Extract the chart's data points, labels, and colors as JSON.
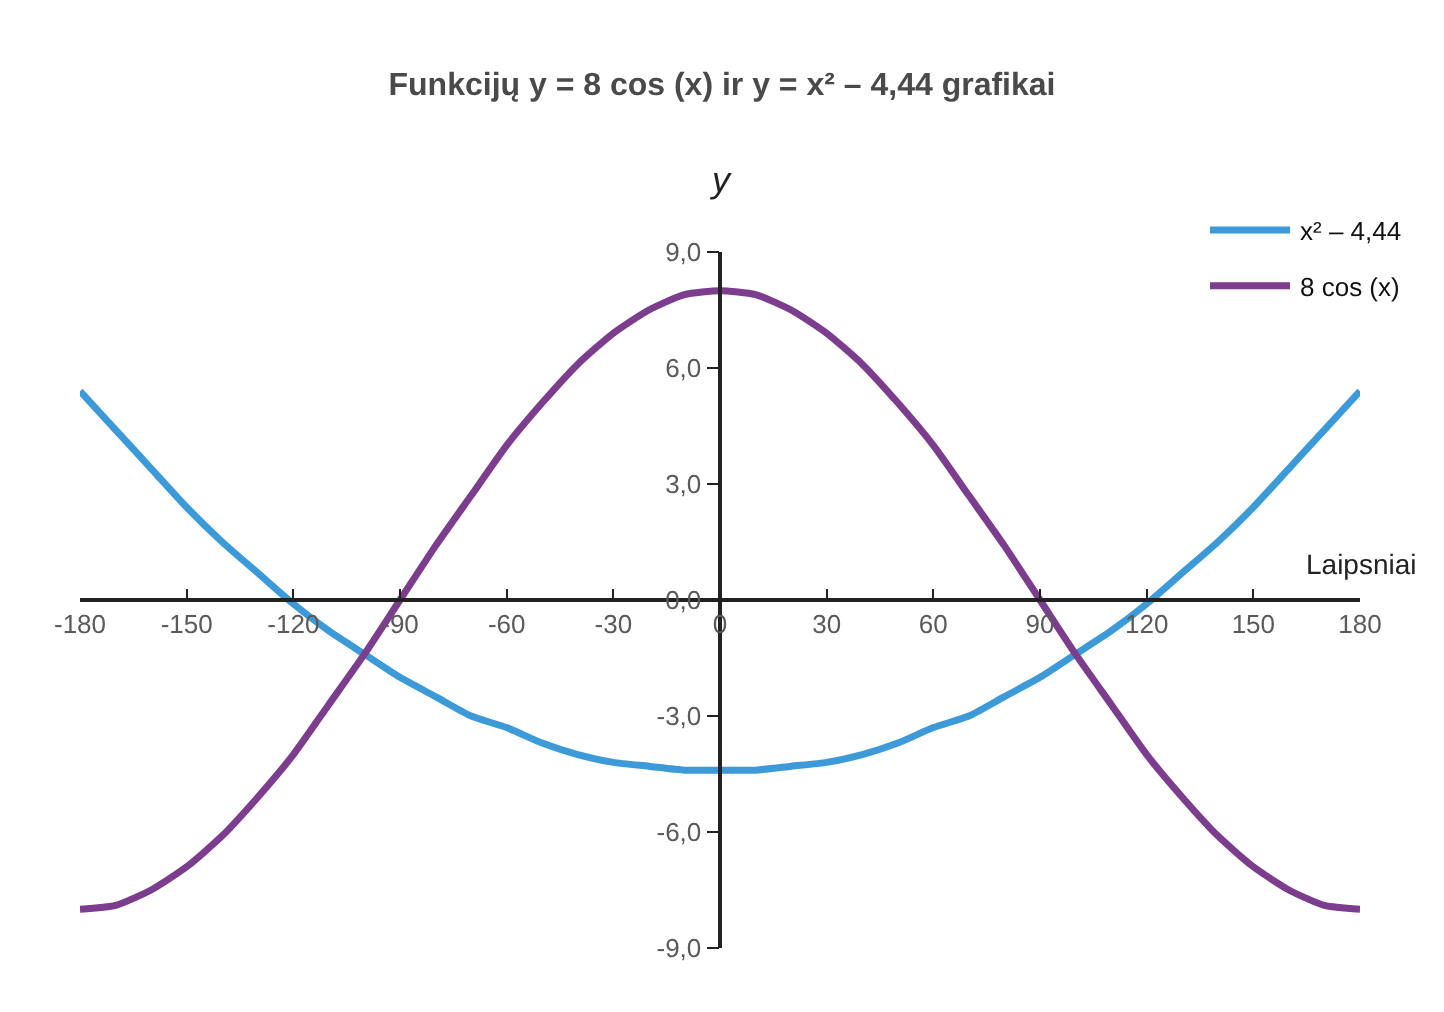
{
  "chart_data": {
    "type": "line",
    "title": "Funkcijų y = 8 cos (x) ir y = x² – 4,44 grafikai",
    "xlabel": "Laipsniai",
    "ylabel": "y",
    "x": [
      -180,
      -170,
      -160,
      -150,
      -140,
      -130,
      -120,
      -110,
      -100,
      -90,
      -80,
      -70,
      -60,
      -50,
      -40,
      -30,
      -20,
      -10,
      0,
      10,
      20,
      30,
      40,
      50,
      60,
      70,
      80,
      90,
      100,
      110,
      120,
      130,
      140,
      150,
      160,
      170,
      180
    ],
    "series": [
      {
        "name": "x² – 4,44",
        "color": "#3d9ad8",
        "values": [
          5.4,
          4.4,
          3.4,
          2.4,
          1.5,
          0.7,
          -0.1,
          -0.8,
          -1.4,
          -2.0,
          -2.5,
          -3.0,
          -3.3,
          -3.7,
          -4.0,
          -4.2,
          -4.3,
          -4.4,
          -4.4,
          -4.4,
          -4.3,
          -4.2,
          -4.0,
          -3.7,
          -3.3,
          -3.0,
          -2.5,
          -2.0,
          -1.4,
          -0.8,
          -0.1,
          0.7,
          1.5,
          2.4,
          3.4,
          4.4,
          5.4
        ]
      },
      {
        "name": "8 cos (x)",
        "color": "#7d3d8e",
        "values": [
          -8.0,
          -7.9,
          -7.5,
          -6.9,
          -6.1,
          -5.1,
          -4.0,
          -2.7,
          -1.4,
          0.0,
          1.4,
          2.7,
          4.0,
          5.1,
          6.1,
          6.9,
          7.5,
          7.9,
          8.0,
          7.9,
          7.5,
          6.9,
          6.1,
          5.1,
          4.0,
          2.7,
          1.4,
          0.0,
          -1.4,
          -2.7,
          -4.0,
          -5.1,
          -6.1,
          -6.9,
          -7.5,
          -7.9,
          -8.0
        ]
      }
    ],
    "xlim": [
      -180,
      180
    ],
    "ylim": [
      -9,
      9
    ],
    "xticks": [
      -180,
      -150,
      -120,
      -90,
      -60,
      -30,
      0,
      30,
      60,
      90,
      120,
      150,
      180
    ],
    "yticks": [
      {
        "value": 9,
        "label": "9,0"
      },
      {
        "value": 6,
        "label": "6,0"
      },
      {
        "value": 3,
        "label": "3,0"
      },
      {
        "value": 0,
        "label": "0,0"
      },
      {
        "value": -3,
        "label": "-3,0"
      },
      {
        "value": -6,
        "label": "-6,0"
      },
      {
        "value": -9,
        "label": "-9,0"
      }
    ],
    "legend": "top right",
    "grid": false
  }
}
